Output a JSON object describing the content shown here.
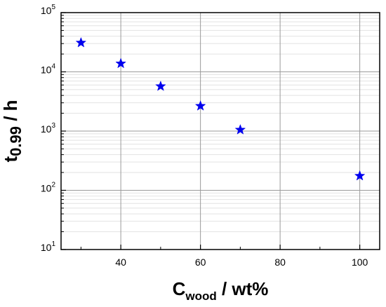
{
  "chart_data": {
    "type": "scatter",
    "x_scale": "linear",
    "y_scale": "log",
    "xlim": [
      25,
      105
    ],
    "ylim": [
      10,
      100000
    ],
    "grid": true,
    "marker": "star",
    "marker_color": "#0000ee",
    "x_ticks": [
      {
        "value": 40,
        "label": "40"
      },
      {
        "value": 60,
        "label": "60"
      },
      {
        "value": 80,
        "label": "80"
      },
      {
        "value": 100,
        "label": "100"
      }
    ],
    "y_ticks": [
      {
        "value": 10,
        "base": "10",
        "exp": "1"
      },
      {
        "value": 100,
        "base": "10",
        "exp": "2"
      },
      {
        "value": 1000,
        "base": "10",
        "exp": "3"
      },
      {
        "value": 10000,
        "base": "10",
        "exp": "4"
      },
      {
        "value": 100000,
        "base": "10",
        "exp": "5"
      }
    ],
    "xlabel": {
      "main": "C",
      "sub": "wood",
      "rest": " / wt%"
    },
    "ylabel": {
      "main": "t",
      "sub": "0.99",
      "rest": " / h"
    },
    "series": [
      {
        "points": [
          {
            "x": 30,
            "y": 31000
          },
          {
            "x": 40,
            "y": 13800
          },
          {
            "x": 50,
            "y": 5700
          },
          {
            "x": 60,
            "y": 2650
          },
          {
            "x": 70,
            "y": 1050
          },
          {
            "x": 100,
            "y": 175
          }
        ]
      }
    ]
  }
}
